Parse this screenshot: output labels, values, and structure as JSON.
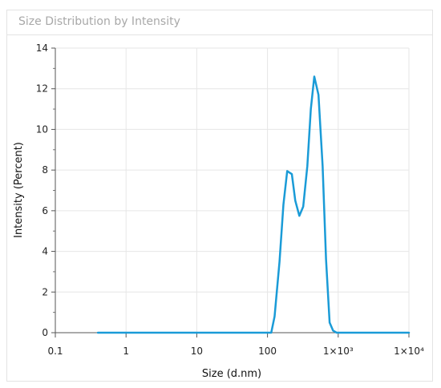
{
  "panel": {
    "title": "Size Distribution by Intensity"
  },
  "chart_data": {
    "type": "line",
    "title": "Size Distribution by Intensity",
    "xlabel": "Size (d.nm)",
    "ylabel": "Intensity (Percent)",
    "x_scale": "log",
    "xlim": [
      0.1,
      10000
    ],
    "ylim": [
      0,
      14
    ],
    "x_ticks": [
      0.1,
      1,
      10,
      100,
      1000,
      10000
    ],
    "x_tick_labels": [
      "0.1",
      "1",
      "10",
      "100",
      "1×10³",
      "1×10⁴"
    ],
    "y_ticks": [
      0,
      2,
      4,
      6,
      8,
      10,
      12,
      14
    ],
    "y_tick_labels": [
      "0",
      "2",
      "4",
      "6",
      "8",
      "10",
      "12",
      "14"
    ],
    "grid": true,
    "line_color": "#1a9bd7",
    "series": [
      {
        "x": [
          0.4,
          1,
          10,
          100,
          113,
          126,
          148,
          168,
          190,
          221,
          247,
          282,
          320,
          366,
          410,
          459,
          526,
          602,
          673,
          756,
          847,
          950,
          1064,
          1200,
          2000,
          5000,
          10000
        ],
        "values": [
          0,
          0,
          0,
          0,
          0,
          0.8,
          3.5,
          6.3,
          7.95,
          7.8,
          6.5,
          5.75,
          6.2,
          8.2,
          11.0,
          12.6,
          11.7,
          8.2,
          3.6,
          0.5,
          0.1,
          0,
          0,
          0,
          0,
          0,
          0
        ]
      }
    ]
  }
}
